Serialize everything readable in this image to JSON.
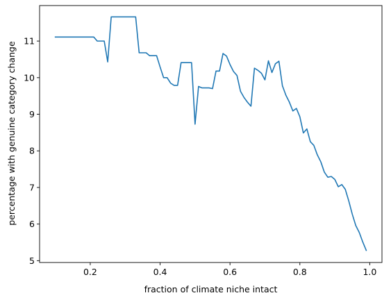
{
  "chart_data": {
    "type": "line",
    "title": "",
    "xlabel": "fraction of climate niche intact",
    "ylabel": "percentage with genuine category change",
    "xlim": [
      0.055,
      1.035
    ],
    "ylim": [
      4.95,
      11.97
    ],
    "xticks": [
      0.2,
      0.4,
      0.6,
      0.8,
      1.0
    ],
    "xtick_labels": [
      "0.2",
      "0.4",
      "0.6",
      "0.8",
      "1.0"
    ],
    "yticks": [
      5,
      6,
      7,
      8,
      9,
      10,
      11
    ],
    "ytick_labels": [
      "5",
      "6",
      "7",
      "8",
      "9",
      "10",
      "11"
    ],
    "grid": false,
    "color": "#1f77b4",
    "series": [
      {
        "x": [
          0.1,
          0.11,
          0.12,
          0.13,
          0.14,
          0.15,
          0.16,
          0.17,
          0.18,
          0.19,
          0.2,
          0.21,
          0.22,
          0.23,
          0.24,
          0.25,
          0.26,
          0.27,
          0.28,
          0.29,
          0.3,
          0.31,
          0.32,
          0.33,
          0.34,
          0.35,
          0.36,
          0.37,
          0.38,
          0.39,
          0.4,
          0.41,
          0.42,
          0.43,
          0.44,
          0.45,
          0.46,
          0.47,
          0.48,
          0.49,
          0.5,
          0.51,
          0.52,
          0.53,
          0.54,
          0.55,
          0.56,
          0.57,
          0.58,
          0.59,
          0.6,
          0.61,
          0.62,
          0.63,
          0.64,
          0.65,
          0.66,
          0.67,
          0.68,
          0.69,
          0.7,
          0.71,
          0.72,
          0.73,
          0.74,
          0.75,
          0.76,
          0.77,
          0.78,
          0.79,
          0.8,
          0.81,
          0.82,
          0.83,
          0.84,
          0.85,
          0.86,
          0.87,
          0.88,
          0.89,
          0.9,
          0.91,
          0.92,
          0.93,
          0.94,
          0.95,
          0.96,
          0.97,
          0.98,
          0.99
        ],
        "y": [
          11.11,
          11.11,
          11.11,
          11.11,
          11.11,
          11.11,
          11.11,
          11.11,
          11.11,
          11.11,
          11.11,
          11.11,
          11.0,
          11.0,
          11.0,
          10.43,
          11.66,
          11.66,
          11.66,
          11.66,
          11.66,
          11.66,
          11.66,
          11.66,
          10.68,
          10.68,
          10.68,
          10.6,
          10.6,
          10.6,
          10.29,
          10.0,
          10.0,
          9.85,
          9.79,
          9.79,
          10.41,
          10.41,
          10.41,
          10.41,
          8.73,
          9.76,
          9.72,
          9.72,
          9.72,
          9.7,
          10.18,
          10.18,
          10.66,
          10.59,
          10.36,
          10.17,
          10.06,
          9.63,
          9.46,
          9.33,
          9.22,
          10.26,
          10.2,
          10.12,
          9.94,
          10.46,
          10.14,
          10.38,
          10.45,
          9.78,
          9.52,
          9.33,
          9.09,
          9.16,
          8.93,
          8.49,
          8.6,
          8.25,
          8.15,
          7.89,
          7.7,
          7.42,
          7.28,
          7.3,
          7.22,
          7.02,
          7.08,
          6.95,
          6.63,
          6.27,
          5.96,
          5.77,
          5.51,
          5.28
        ]
      }
    ]
  }
}
